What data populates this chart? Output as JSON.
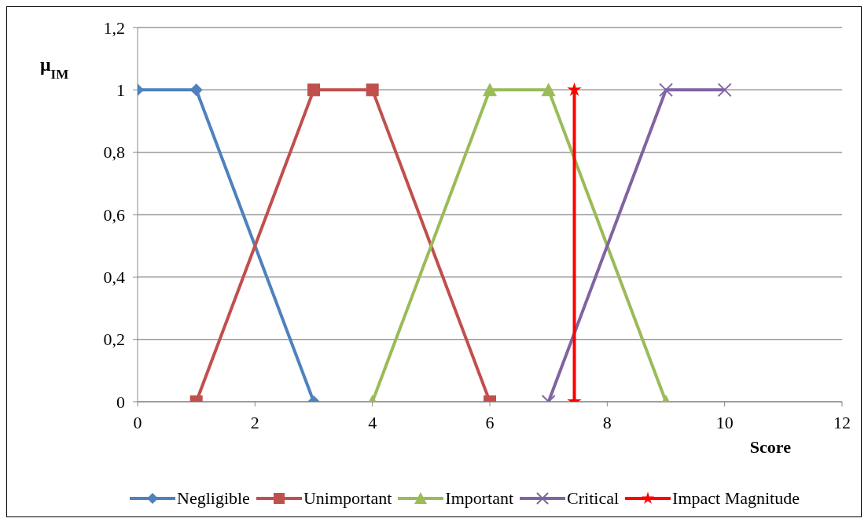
{
  "chart_data": {
    "type": "line",
    "xlabel": "Score",
    "ylabel": "μ$_{IM}$",
    "xlim": [
      0,
      12
    ],
    "xticks": [
      0,
      2,
      4,
      6,
      8,
      10,
      12
    ],
    "ylim": [
      0,
      1.2
    ],
    "yticks": [
      0,
      {
        "value": 0.2,
        "label": "0,2"
      },
      {
        "value": 0.4,
        "label": "0,4"
      },
      {
        "value": 0.6,
        "label": "0,6"
      },
      {
        "value": 0.8,
        "label": "0,8"
      },
      1,
      {
        "value": 1.2,
        "label": "1,2"
      }
    ],
    "grid": "y",
    "legend": "bottom",
    "line_style": "solid",
    "series": [
      {
        "name": "Negligible",
        "color": "#4f81bd",
        "marker": "diamond",
        "x": [
          0,
          1,
          3
        ],
        "values": [
          1,
          1,
          0
        ]
      },
      {
        "name": "Unimportant",
        "color": "#c0504d",
        "marker": "square",
        "x": [
          1,
          3,
          4,
          6
        ],
        "values": [
          0,
          1,
          1,
          0
        ]
      },
      {
        "name": "Important",
        "color": "#9bbb59",
        "marker": "triangle",
        "x": [
          4,
          6,
          7,
          9
        ],
        "values": [
          0,
          1,
          1,
          0
        ]
      },
      {
        "name": "Critical",
        "color": "#8064a2",
        "marker": "cross",
        "x": [
          7,
          9,
          10
        ],
        "values": [
          0,
          1,
          1
        ]
      },
      {
        "name": "Impact Magnitude",
        "color": "#ff0000",
        "marker": "star",
        "x": [
          7.44,
          7.44
        ],
        "values": [
          0,
          1
        ]
      }
    ]
  }
}
